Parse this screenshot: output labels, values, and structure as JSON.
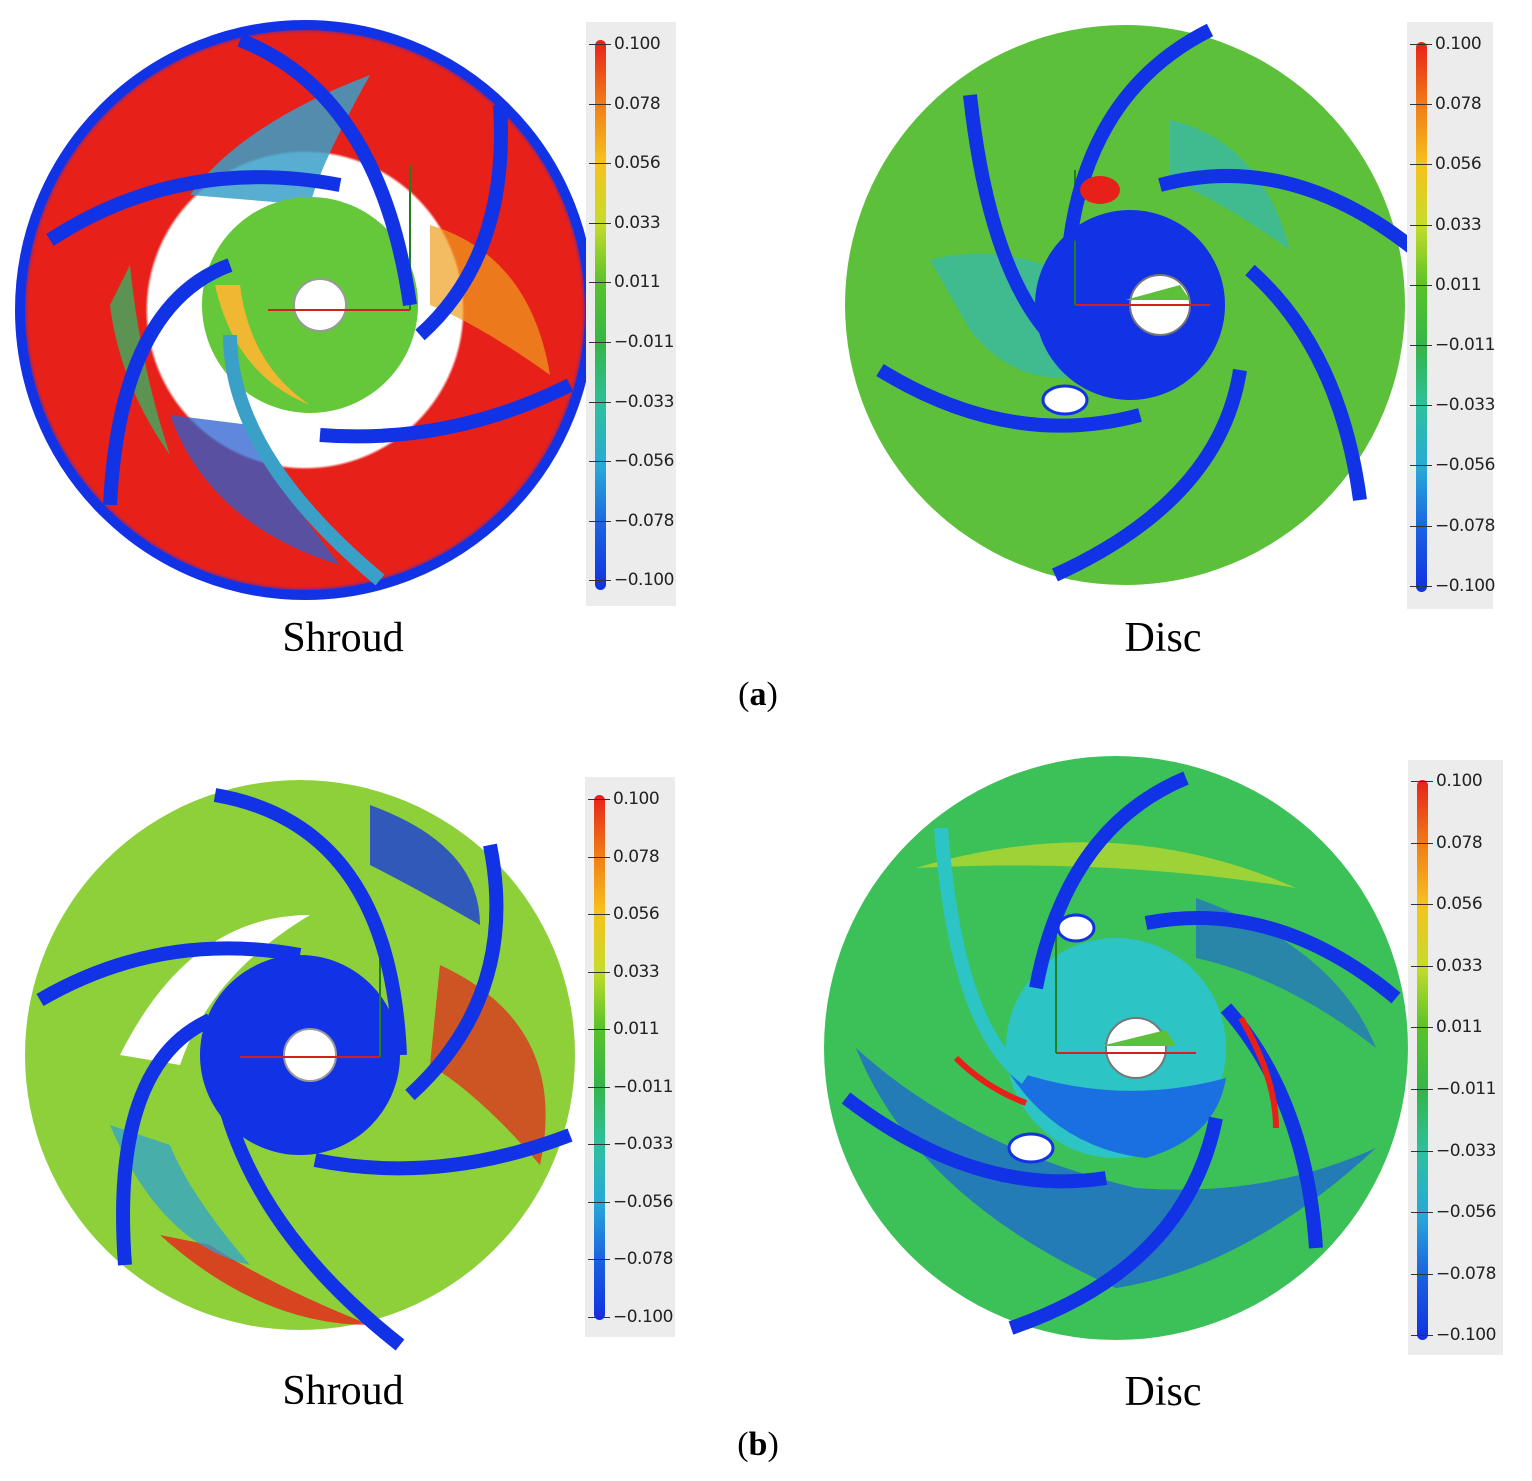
{
  "figure": {
    "row_a": {
      "label_open": "(",
      "label_letter": "a",
      "label_close": ")",
      "left_caption": "Shroud",
      "right_caption": "Disc"
    },
    "row_b": {
      "label_open": "(",
      "label_letter": "b",
      "label_close": ")",
      "left_caption": "Shroud",
      "right_caption": "Disc"
    }
  },
  "color_scale": {
    "ticks": [
      "0.100",
      "0.078",
      "0.056",
      "0.033",
      "0.011",
      "−0.011",
      "−0.033",
      "−0.056",
      "−0.078",
      "−0.100"
    ],
    "colors": [
      "#e8201a",
      "#f07a18",
      "#f6c21c",
      "#c6dc2a",
      "#58c22a",
      "#34b54a",
      "#2dc0a0",
      "#28a8d8",
      "#1a60e0",
      "#1030e0"
    ]
  },
  "palette": {
    "red": "#e8201a",
    "green": "#5cc03a",
    "blue": "#1232e6",
    "cyan": "#2cc4c4"
  }
}
